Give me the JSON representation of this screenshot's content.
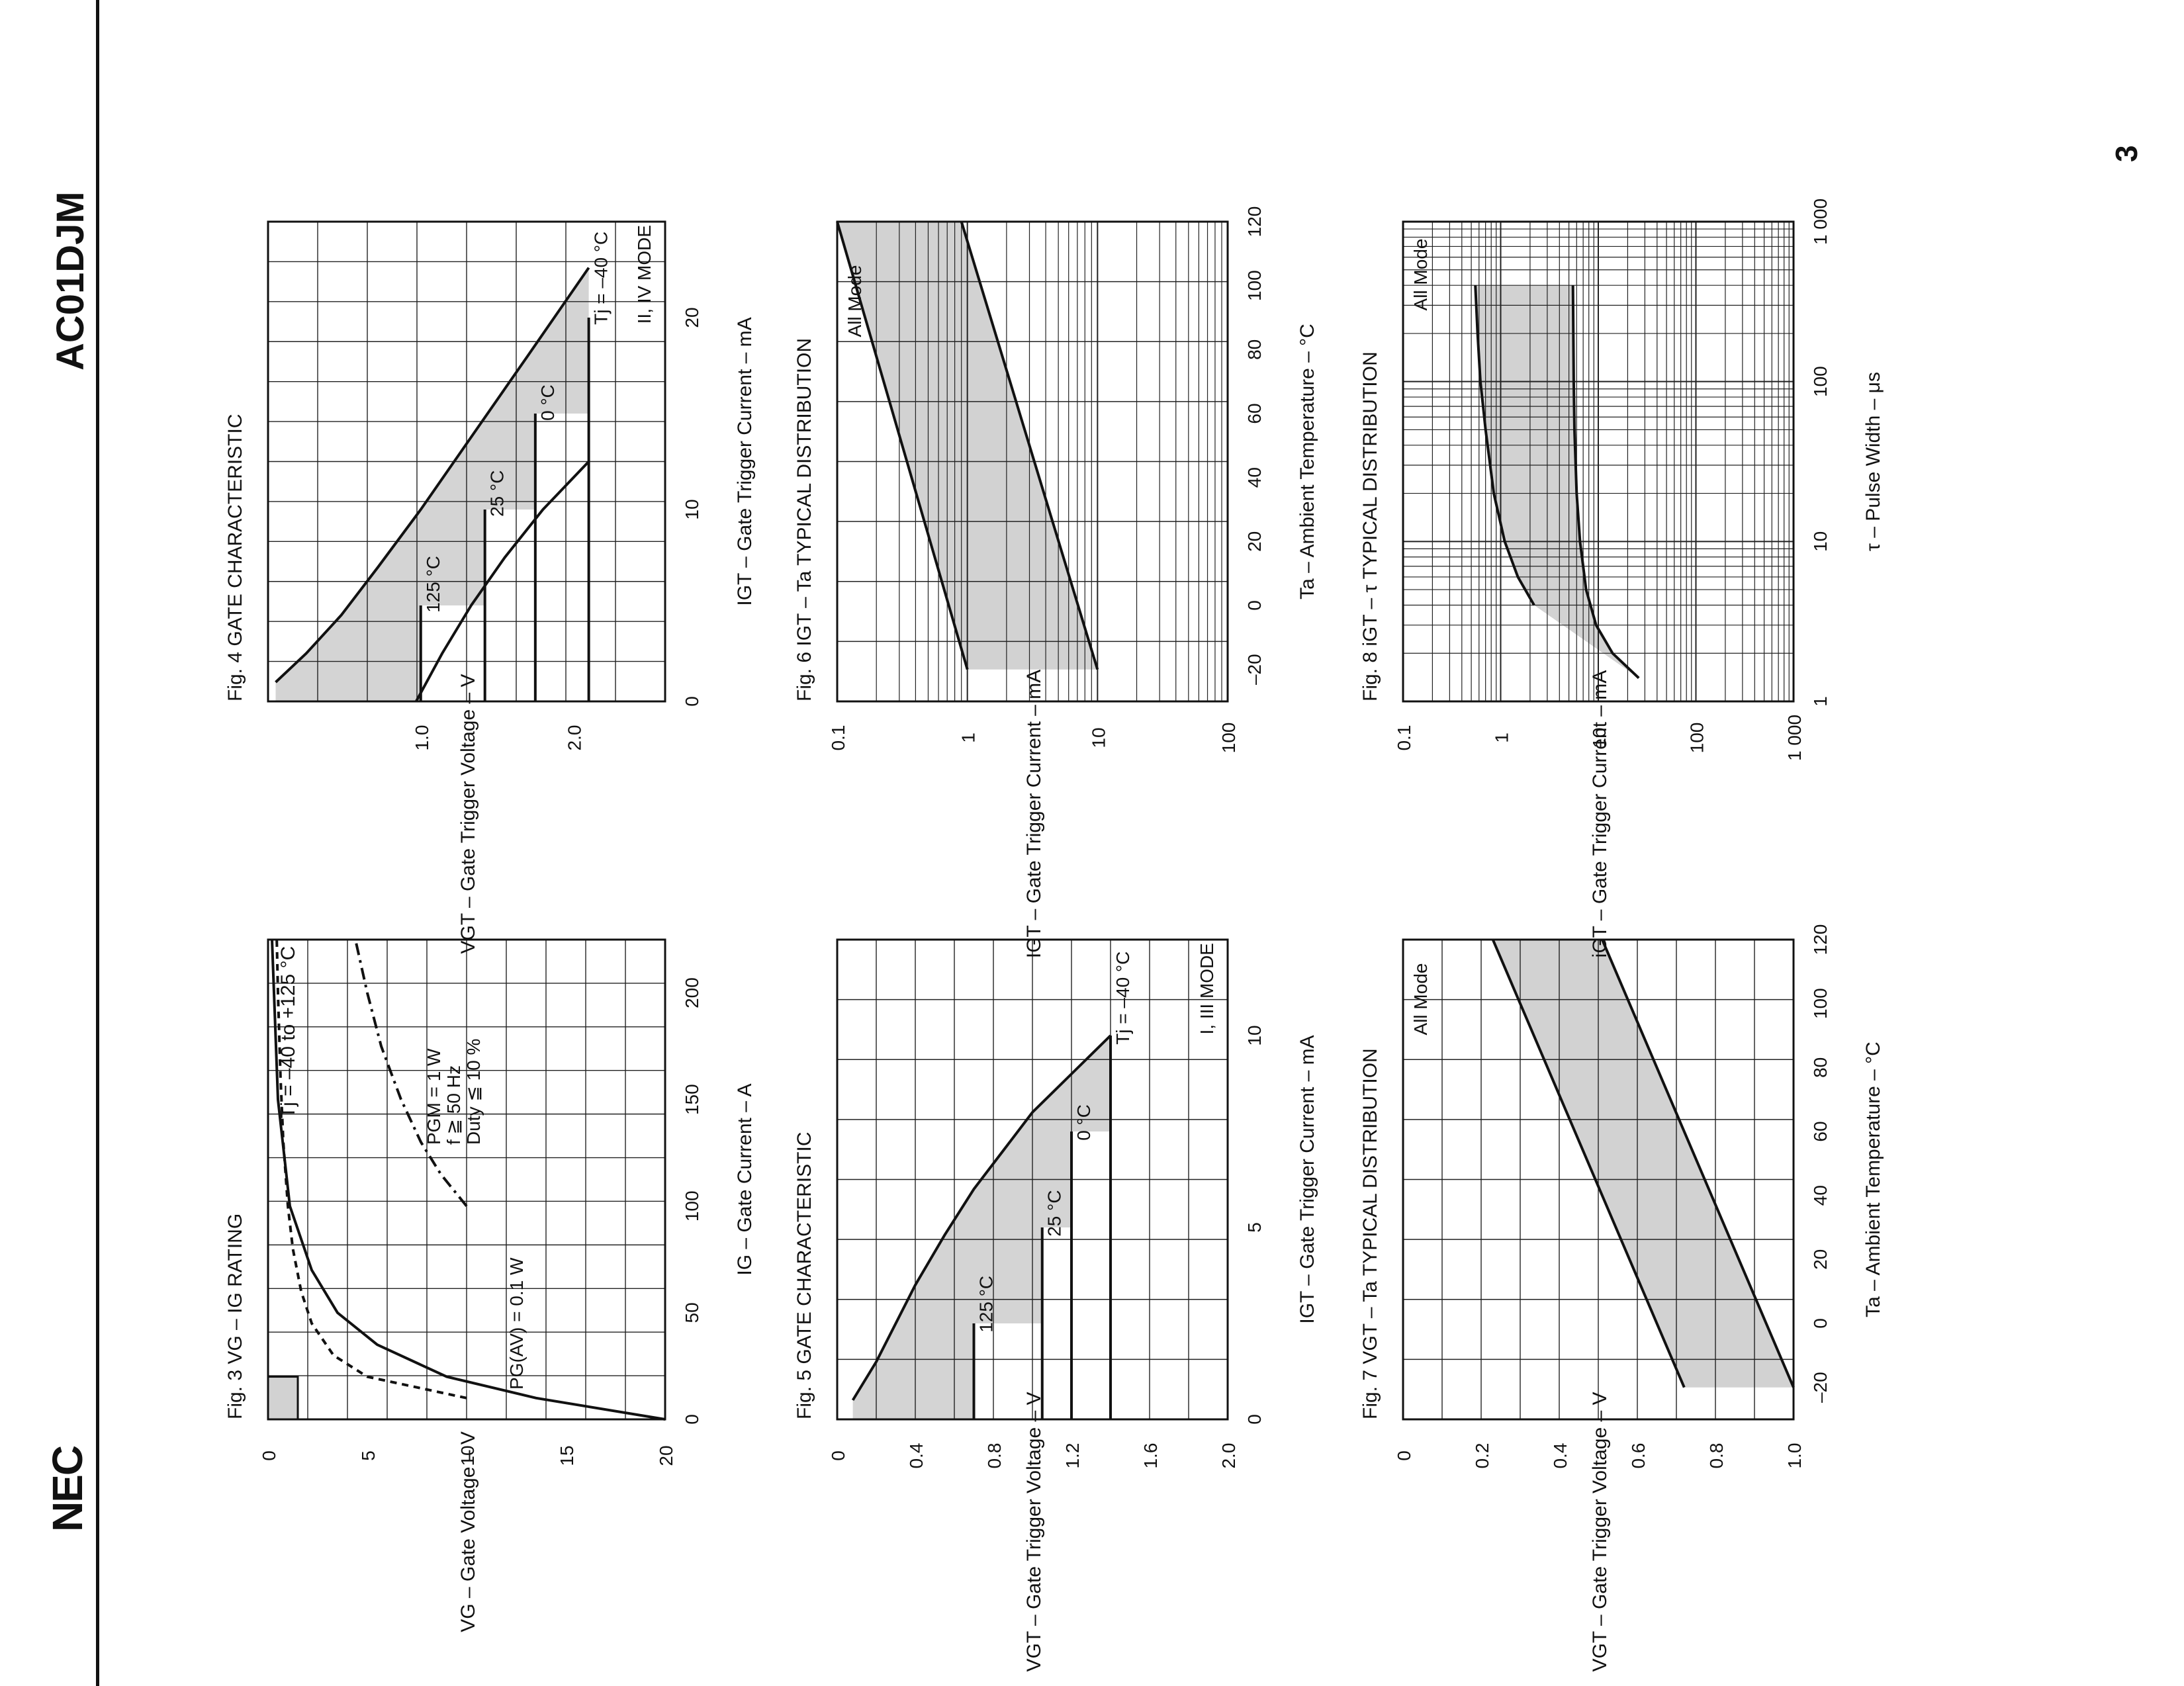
{
  "header": {
    "brand": "NEC",
    "part_number": "AC01DJM",
    "page_number": "3"
  },
  "chart_data": [
    {
      "id": "fig3",
      "type": "line",
      "title": "Fig. 3  VG – IG RATING",
      "xlabel": "IG – Gate Current – A",
      "ylabel": "VG – Gate Voltage – V",
      "x_ticks": [
        "0",
        "50",
        "100",
        "150",
        "200"
      ],
      "y_ticks": [
        "0",
        "5",
        "10",
        "15",
        "20"
      ],
      "xlim": [
        0,
        225
      ],
      "ylim": [
        0,
        20
      ],
      "annotations": [
        "Tj = –40 to +125 °C",
        "PGM = 1 W",
        "f ≧ 50 Hz",
        "Duty ≦ 10 %",
        "PG(AV) = 0.1 W"
      ],
      "series": [
        {
          "name": "PGM = 1 W",
          "x": [
            100,
            115,
            130,
            150,
            175,
            200,
            225
          ],
          "y": [
            10,
            8.7,
            7.7,
            6.7,
            5.7,
            5.0,
            4.4
          ]
        },
        {
          "name": "PG(AV) = 0.1 W",
          "x": [
            10,
            20,
            30,
            45,
            60,
            80,
            100,
            130,
            160,
            200,
            225
          ],
          "y": [
            10,
            5,
            3.3,
            2.2,
            1.67,
            1.25,
            1.0,
            0.77,
            0.63,
            0.5,
            0.44
          ]
        },
        {
          "name": "gate load line",
          "x": [
            0,
            10,
            20,
            35,
            50,
            70,
            100,
            150,
            225
          ],
          "y": [
            20,
            13.5,
            9,
            5.5,
            3.5,
            2.2,
            1.1,
            0.5,
            0.2
          ]
        }
      ]
    },
    {
      "id": "fig4",
      "type": "area",
      "title": "Fig. 4  GATE CHARACTERISTIC",
      "xlabel": "IGT – Gate Trigger Current – mA",
      "ylabel": "VGT – Gate Trigger Voltage – V",
      "x_ticks": [
        "0",
        "10",
        "20"
      ],
      "y_ticks": [
        "1.0",
        "2.0"
      ],
      "xlim": [
        0,
        25
      ],
      "ylim": [
        0,
        2.6
      ],
      "annotations": [
        "II, IV MODE",
        "Tj = –40 °C",
        "0 °C",
        "25 °C",
        "125 °C"
      ],
      "boxes": [
        {
          "label": "Tj = –40 °C",
          "imax": 20,
          "vmax": 2.1
        },
        {
          "label": "0 °C",
          "imax": 15,
          "vmax": 1.75
        },
        {
          "label": "25 °C",
          "imax": 10,
          "vmax": 1.42
        },
        {
          "label": "125 °C",
          "imax": 5,
          "vmax": 1.0
        }
      ],
      "envelope_left": {
        "x": [
          12.5,
          10,
          7.5,
          5,
          2.5,
          0
        ],
        "y": [
          2.1,
          1.8,
          1.55,
          1.33,
          1.14,
          0.97
        ]
      },
      "envelope_right": {
        "x": [
          22.6,
          18,
          14,
          10,
          7,
          4.5,
          2.5,
          1
        ],
        "y": [
          2.1,
          1.7,
          1.35,
          1.0,
          0.72,
          0.48,
          0.25,
          0.05
        ]
      }
    },
    {
      "id": "fig5",
      "type": "area",
      "title": "Fig. 5  GATE CHARACTERISTIC",
      "xlabel": "IGT – Gate Trigger Current – mA",
      "ylabel": "VGT – Gate Trigger Voltage – V",
      "x_ticks": [
        "0",
        "5",
        "10"
      ],
      "y_ticks": [
        "0",
        "0.4",
        "0.8",
        "1.2",
        "1.6",
        "2.0"
      ],
      "xlim": [
        0,
        12.5
      ],
      "ylim": [
        0,
        2.0
      ],
      "annotations": [
        "I, III MODE",
        "Tj = –40 °C",
        "0 °C",
        "25 °C",
        "125 °C"
      ],
      "boxes": [
        {
          "label": "Tj = –40 °C",
          "imax": 10,
          "vmax": 1.4
        },
        {
          "label": "0 °C",
          "imax": 7.5,
          "vmax": 1.2
        },
        {
          "label": "25 °C",
          "imax": 5,
          "vmax": 1.05
        },
        {
          "label": "125 °C",
          "imax": 2.5,
          "vmax": 0.7
        }
      ],
      "envelope_right": {
        "x": [
          10,
          9,
          8,
          7,
          6,
          4.8,
          3.5,
          1.5,
          0.5
        ],
        "y": [
          1.4,
          1.2,
          1.0,
          0.85,
          0.7,
          0.55,
          0.4,
          0.2,
          0.08
        ]
      }
    },
    {
      "id": "fig6",
      "type": "area",
      "title": "Fig. 6  IGT – Ta TYPICAL DISTRIBUTION",
      "xlabel": "Ta – Ambient Temperature – °C",
      "ylabel": "IGT – Gate Trigger Current – mA",
      "x_ticks": [
        "–20",
        "0",
        "20",
        "40",
        "60",
        "80",
        "100",
        "120"
      ],
      "y_ticks": [
        "0.1",
        "1",
        "10",
        "100"
      ],
      "xlim": [
        -30,
        120
      ],
      "ylim": [
        0.1,
        100
      ],
      "y_scale": "log",
      "annotations": [
        "All Mode"
      ],
      "series": [
        {
          "name": "upper",
          "x": [
            -20,
            120
          ],
          "y": [
            10,
            0.9
          ]
        },
        {
          "name": "lower",
          "x": [
            -20,
            120
          ],
          "y": [
            1,
            0.1
          ]
        }
      ]
    },
    {
      "id": "fig7",
      "type": "area",
      "title": "Fig. 7  VGT – Ta TYPICAL DISTRIBUTION",
      "xlabel": "Ta – Ambient Temperature – °C",
      "ylabel": "VGT – Gate Trigger Voltage – V",
      "x_ticks": [
        "–20",
        "0",
        "20",
        "40",
        "60",
        "80",
        "100",
        "120"
      ],
      "y_ticks": [
        "0",
        "0.2",
        "0.4",
        "0.6",
        "0.8",
        "1.0"
      ],
      "xlim": [
        -30,
        120
      ],
      "ylim": [
        0,
        1.0
      ],
      "annotations": [
        "All Mode"
      ],
      "series": [
        {
          "name": "upper",
          "x": [
            -20,
            120
          ],
          "y": [
            1.0,
            0.51
          ]
        },
        {
          "name": "lower",
          "x": [
            -20,
            120
          ],
          "y": [
            0.72,
            0.23
          ]
        }
      ]
    },
    {
      "id": "fig8",
      "type": "area",
      "title": "Fig. 8  iGT – τ TYPICAL DISTRIBUTION",
      "xlabel": "τ – Pulse Width – μs",
      "ylabel": "iGT – Gate Trigger Current – mA",
      "x_ticks": [
        "1",
        "10",
        "100",
        "1 000"
      ],
      "y_ticks": [
        "0.1",
        "1",
        "10",
        "100",
        "1 000"
      ],
      "xlim": [
        1,
        1000
      ],
      "ylim": [
        0.1,
        1000
      ],
      "x_scale": "log",
      "y_scale": "log",
      "annotations": [
        "All Mode"
      ],
      "series": [
        {
          "name": "upper",
          "x": [
            1.4,
            2,
            3,
            5,
            10,
            20,
            50,
            100,
            200,
            400
          ],
          "y": [
            26,
            14,
            9.5,
            7.5,
            6.5,
            6,
            5.7,
            5.6,
            5.55,
            5.5
          ]
        },
        {
          "name": "lower",
          "x": [
            4,
            6,
            10,
            20,
            50,
            100,
            200,
            400
          ],
          "y": [
            2.2,
            1.5,
            1.1,
            0.85,
            0.7,
            0.62,
            0.58,
            0.55
          ]
        }
      ]
    }
  ]
}
